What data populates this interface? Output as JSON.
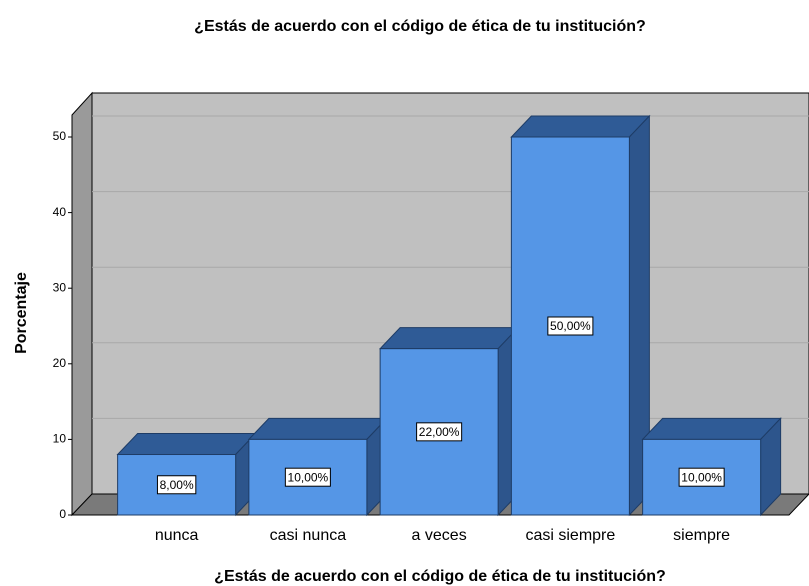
{
  "chart_data": {
    "type": "bar3d",
    "title": "¿Estás de acuerdo con el código de ética de tu institución?",
    "x_label": "¿Estás de acuerdo con el código de ética de tu institución?",
    "y_label": "Porcentaje",
    "categories": [
      "nunca",
      "casi nunca",
      "a veces",
      "casi siempre",
      "siempre"
    ],
    "values": [
      8,
      10,
      22,
      50,
      10
    ],
    "value_labels": [
      "8,00%",
      "10,00%",
      "22,00%",
      "50,00%",
      "10,00%"
    ],
    "color": "#5596e6",
    "ylim": [
      0,
      55
    ],
    "yticks": [
      0,
      10,
      20,
      30,
      40,
      50
    ],
    "grid": true
  }
}
